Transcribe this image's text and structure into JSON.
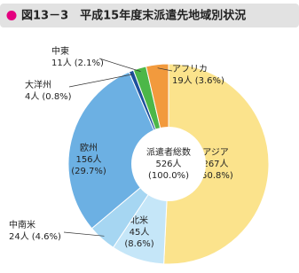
{
  "chart_data": {
    "type": "pie",
    "title": "図13－3　平成15年度末派遣先地域別状況",
    "categories": [
      "アジア",
      "北米",
      "中南米",
      "欧州",
      "大洋州",
      "中東",
      "アフリカ"
    ],
    "values": [
      267,
      45,
      24,
      156,
      4,
      11,
      19
    ],
    "value_labels": [
      "267人",
      "45人",
      "24人",
      "156人",
      "4人",
      "11人",
      "19人"
    ],
    "percents": [
      50.8,
      8.6,
      4.6,
      29.7,
      0.8,
      2.1,
      3.6
    ],
    "percent_labels": [
      "(50.8%)",
      "(8.6%)",
      "(4.6%)",
      "(29.7%)",
      "(0.8%)",
      "(2.1%)",
      "(3.6%)"
    ],
    "colors": [
      "#fbe38c",
      "#c5e6f8",
      "#a6d6f2",
      "#6cb0e3",
      "#1c4f9c",
      "#4cb748",
      "#f29a3d"
    ],
    "center_title": "派遣者総数",
    "total": 526,
    "total_label": "526人",
    "total_percent": 100.0,
    "total_percent_label": "(100.0%)"
  }
}
